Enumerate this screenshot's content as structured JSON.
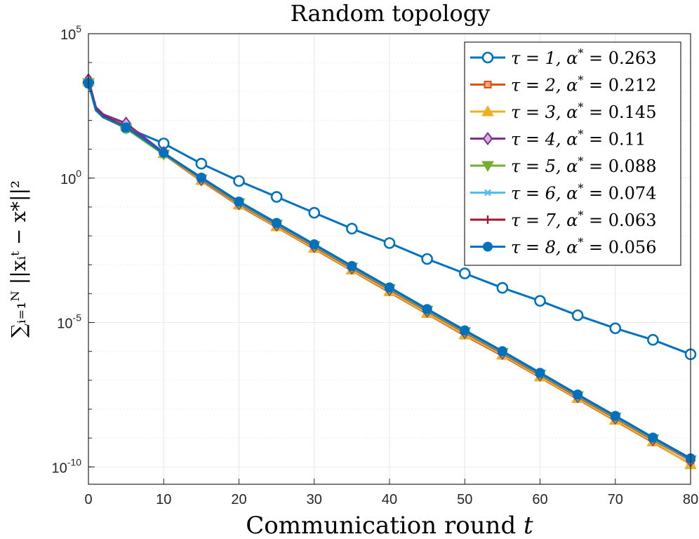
{
  "chart_data": {
    "type": "line",
    "title": "Random topology",
    "xlabel": "Communication round t",
    "ylabel": "∑ᵢ₌₁ᴺ ||xᵢᵗ − x*||²",
    "x_ticks": [
      "0",
      "10",
      "20",
      "30",
      "40",
      "50",
      "60",
      "70",
      "80"
    ],
    "y_ticks": [
      {
        "base": "10",
        "exp": "-10",
        "value": -10
      },
      {
        "base": "10",
        "exp": "-5",
        "value": -5
      },
      {
        "base": "10",
        "exp": "0",
        "value": 0
      },
      {
        "base": "10",
        "exp": "5",
        "value": 5
      }
    ],
    "xlim": [
      0,
      80
    ],
    "ylim_log10": [
      -10.6,
      5
    ],
    "grid": true,
    "legend_position": "top-right",
    "x": [
      0,
      5,
      10,
      15,
      20,
      25,
      30,
      35,
      40,
      45,
      50,
      55,
      60,
      65,
      70,
      75,
      80
    ],
    "series": [
      {
        "name": "τ = 1, α* = 0.263",
        "color": "#0072BD",
        "marker": "circle",
        "log10_values": [
          3.3,
          1.75,
          1.2,
          0.5,
          -0.1,
          -0.65,
          -1.2,
          -1.75,
          -2.25,
          -2.8,
          -3.3,
          -3.8,
          -4.25,
          -4.75,
          -5.2,
          -5.6,
          -6.1
        ]
      },
      {
        "name": "τ = 2, α* = 0.212",
        "color": "#D95319",
        "marker": "square",
        "log10_values": [
          3.3,
          1.82,
          0.82,
          -0.1,
          -0.95,
          -1.7,
          -2.45,
          -3.2,
          -3.95,
          -4.7,
          -5.45,
          -6.15,
          -6.9,
          -7.65,
          -8.4,
          -9.15,
          -9.9
        ]
      },
      {
        "name": "τ = 3, α* = 0.145",
        "color": "#EDB120",
        "marker": "triangle-up",
        "log10_values": [
          3.35,
          1.85,
          0.85,
          -0.08,
          -0.92,
          -1.68,
          -2.42,
          -3.18,
          -3.92,
          -4.68,
          -5.42,
          -6.12,
          -6.88,
          -7.62,
          -8.38,
          -9.12,
          -9.92
        ]
      },
      {
        "name": "τ = 4, α* = 0.11",
        "color": "#7E2F8E",
        "marker": "diamond",
        "log10_values": [
          3.4,
          1.9,
          0.88,
          -0.05,
          -0.88,
          -1.62,
          -2.36,
          -3.11,
          -3.85,
          -4.6,
          -5.34,
          -6.06,
          -6.81,
          -7.56,
          -8.3,
          -9.05,
          -9.78
        ]
      },
      {
        "name": "τ = 5, α* = 0.088",
        "color": "#77AC30",
        "marker": "triangle-down",
        "log10_values": [
          3.3,
          1.72,
          0.82,
          -0.03,
          -0.86,
          -1.6,
          -2.34,
          -3.09,
          -3.83,
          -4.58,
          -5.32,
          -6.04,
          -6.79,
          -7.54,
          -8.28,
          -9.03,
          -9.76
        ]
      },
      {
        "name": "τ = 6, α* = 0.074",
        "color": "#4DBEEE",
        "marker": "asterisk",
        "log10_values": [
          3.35,
          1.78,
          0.85,
          0.0,
          -0.84,
          -1.58,
          -2.32,
          -3.07,
          -3.81,
          -4.56,
          -5.3,
          -6.02,
          -6.77,
          -7.52,
          -8.26,
          -9.01,
          -9.74
        ]
      },
      {
        "name": "τ = 7, α* = 0.063",
        "color": "#A2142F",
        "marker": "plus",
        "log10_values": [
          3.35,
          1.78,
          0.86,
          0.01,
          -0.82,
          -1.56,
          -2.3,
          -3.05,
          -3.79,
          -4.54,
          -5.28,
          -6.0,
          -6.75,
          -7.5,
          -8.24,
          -8.99,
          -9.72
        ]
      },
      {
        "name": "τ = 8, α* = 0.056",
        "color": "#0072BD",
        "marker": "dot",
        "log10_values": [
          3.3,
          1.76,
          0.87,
          0.02,
          -0.81,
          -1.55,
          -2.29,
          -3.04,
          -3.78,
          -4.53,
          -5.27,
          -5.99,
          -6.74,
          -7.49,
          -8.23,
          -8.98,
          -9.7
        ]
      }
    ],
    "legend": [
      {
        "tau": "1",
        "alpha": "0.263"
      },
      {
        "tau": "2",
        "alpha": "0.212"
      },
      {
        "tau": "3",
        "alpha": "0.145"
      },
      {
        "tau": "4",
        "alpha": "0.11"
      },
      {
        "tau": "5",
        "alpha": "0.088"
      },
      {
        "tau": "6",
        "alpha": "0.074"
      },
      {
        "tau": "7",
        "alpha": "0.063"
      },
      {
        "tau": "8",
        "alpha": "0.056"
      }
    ]
  }
}
